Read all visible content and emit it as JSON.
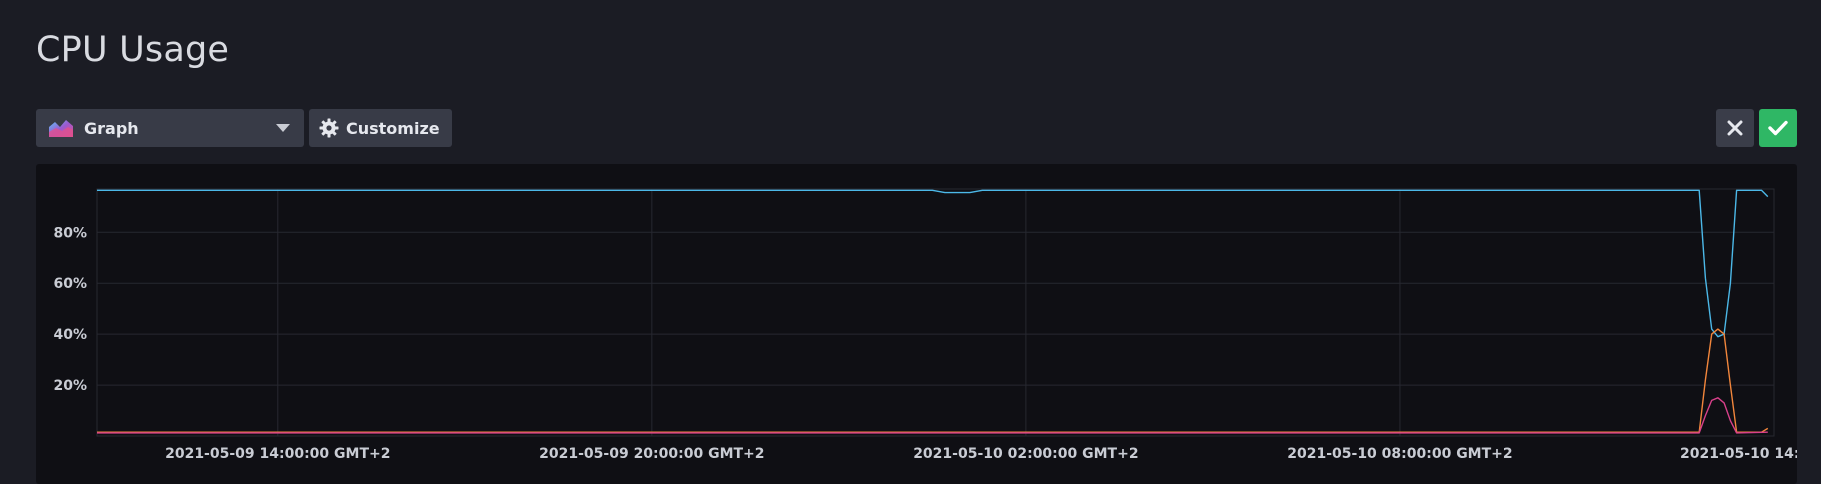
{
  "page": {
    "title": "CPU Usage"
  },
  "toolbar": {
    "view_select": {
      "value": "Graph",
      "icon": "graph-icon"
    },
    "customize_label": "Customize",
    "customize_icon": "gear-icon"
  },
  "actions": {
    "cancel_icon": "close-icon",
    "confirm_icon": "check-icon"
  },
  "colors": {
    "background": "#1b1c24",
    "panel": "#0f0f14",
    "button": "#383b47",
    "confirm": "#2fb765",
    "grid": "#272830"
  },
  "chart_data": {
    "type": "line",
    "y_ticks": [
      "20%",
      "40%",
      "60%",
      "80%"
    ],
    "y_tick_values": [
      20,
      40,
      60,
      80
    ],
    "ylim": [
      0,
      97
    ],
    "x_tick_labels": [
      "2021-05-09 14:00:00 GMT+2",
      "2021-05-09 20:00:00 GMT+2",
      "2021-05-10 02:00:00 GMT+2",
      "2021-05-10 08:00:00 GMT+2",
      "2021-05-10 14:"
    ],
    "x_tick_hours": [
      0,
      6,
      12,
      18,
      24
    ],
    "xlim_hours": [
      -2.9,
      24.0
    ],
    "grid": true,
    "legend": "none",
    "series": [
      {
        "color": "#4cb8e8",
        "points": [
          [
            -2.9,
            96.5
          ],
          [
            10.5,
            96.5
          ],
          [
            10.7,
            95.6
          ],
          [
            11.1,
            95.6
          ],
          [
            11.3,
            96.5
          ],
          [
            22.8,
            96.5
          ],
          [
            22.9,
            62
          ],
          [
            23.0,
            42
          ],
          [
            23.1,
            39
          ],
          [
            23.2,
            40
          ],
          [
            23.3,
            60
          ],
          [
            23.4,
            96.5
          ],
          [
            23.8,
            96.5
          ],
          [
            23.9,
            94
          ]
        ]
      },
      {
        "color": "#f2863c",
        "points": [
          [
            -2.9,
            1.5
          ],
          [
            22.8,
            1.5
          ],
          [
            22.9,
            22
          ],
          [
            23.0,
            40
          ],
          [
            23.1,
            42
          ],
          [
            23.2,
            40
          ],
          [
            23.3,
            20
          ],
          [
            23.4,
            1.5
          ],
          [
            23.8,
            1.5
          ],
          [
            23.9,
            3
          ]
        ]
      },
      {
        "color": "#d8408a",
        "points": [
          [
            -2.9,
            1.2
          ],
          [
            22.8,
            1.2
          ],
          [
            22.9,
            8
          ],
          [
            23.0,
            14
          ],
          [
            23.1,
            15
          ],
          [
            23.2,
            13
          ],
          [
            23.3,
            6
          ],
          [
            23.4,
            1.2
          ],
          [
            23.9,
            1.5
          ]
        ]
      }
    ]
  }
}
